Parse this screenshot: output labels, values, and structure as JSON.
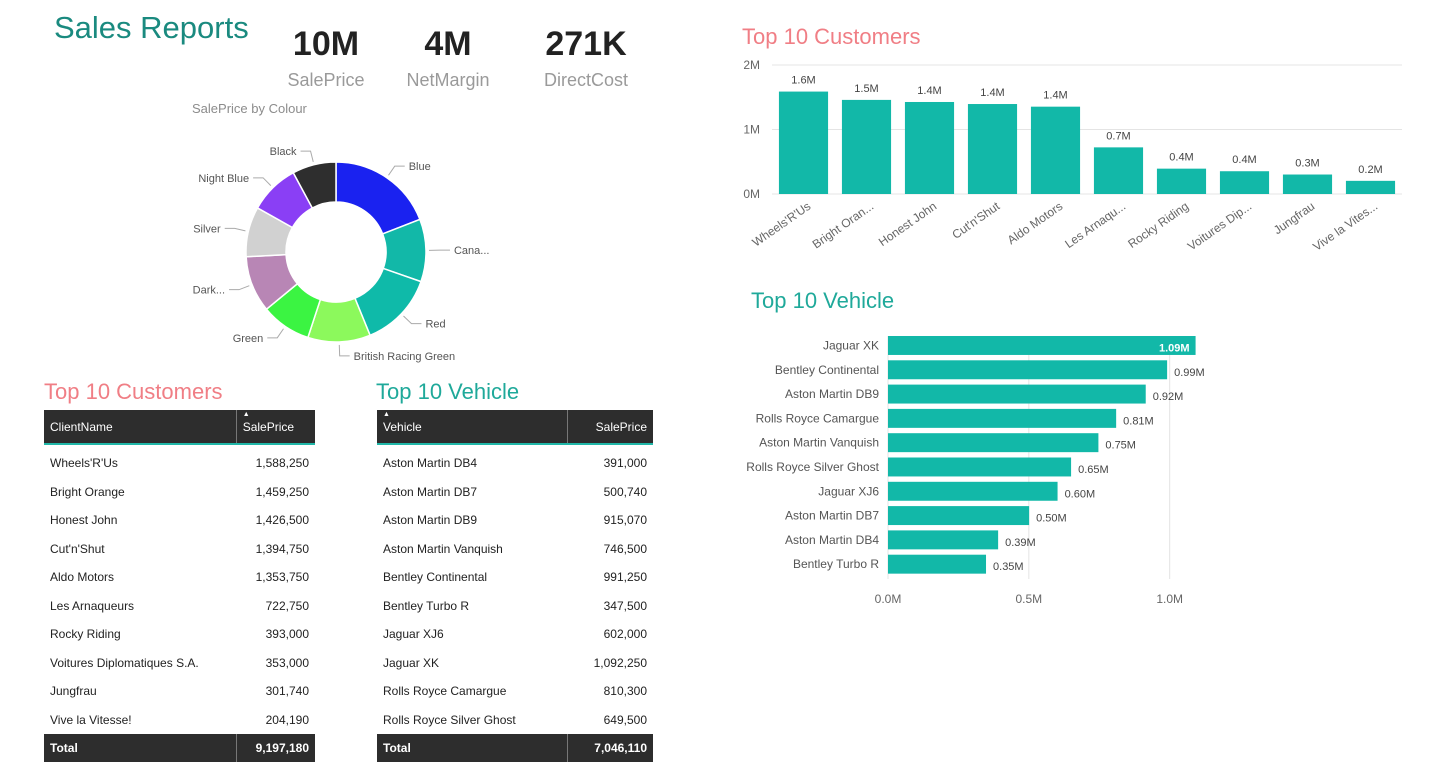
{
  "app": {
    "title": "Sales Reports"
  },
  "kpis": [
    {
      "value": "10M",
      "label": "SalePrice"
    },
    {
      "value": "4M",
      "label": "NetMargin"
    },
    {
      "value": "271K",
      "label": "DirectCost"
    }
  ],
  "colors": {
    "teal_bar": "#12b8a8",
    "pink_title": "#f07e85",
    "teal_title": "#1fa99a",
    "header_bg": "#2d2d2d"
  },
  "chart_data": [
    {
      "type": "pie",
      "title": "SalePrice by Colour",
      "donut": true,
      "slices": [
        {
          "label": "Blue",
          "value": 17,
          "color": "#1a22f0"
        },
        {
          "label": "Cana...",
          "value": 10,
          "color": "#12b8a8"
        },
        {
          "label": "Red",
          "value": 12,
          "color": "#0fbaa9"
        },
        {
          "label": "British Racing Green",
          "value": 10,
          "color": "#8cf95c"
        },
        {
          "label": "Green",
          "value": 8,
          "color": "#3bf442"
        },
        {
          "label": "Dark...",
          "value": 9,
          "color": "#b886b5"
        },
        {
          "label": "Silver",
          "value": 8,
          "color": "#d1d1d1"
        },
        {
          "label": "Night Blue",
          "value": 8,
          "color": "#8a3ff5"
        },
        {
          "label": "Black",
          "value": 7,
          "color": "#2e2e2e"
        }
      ]
    },
    {
      "type": "bar",
      "title": "Top 10 Customers",
      "categories": [
        "Wheels'R'Us",
        "Bright Oran...",
        "Honest John",
        "Cut'n'Shut",
        "Aldo Motors",
        "Les Arnaqu...",
        "Rocky Riding",
        "Voitures Dip...",
        "Jungfrau",
        "Vive la Vites..."
      ],
      "values": [
        1.588,
        1.459,
        1.4265,
        1.395,
        1.354,
        0.723,
        0.393,
        0.353,
        0.302,
        0.204
      ],
      "data_labels": [
        "1.6M",
        "1.5M",
        "1.4M",
        "1.4M",
        "1.4M",
        "0.7M",
        "0.4M",
        "0.4M",
        "0.3M",
        "0.2M"
      ],
      "yticks": [
        "0M",
        "1M",
        "2M"
      ],
      "ylim": [
        0,
        2
      ],
      "grid": true
    },
    {
      "type": "bar",
      "orientation": "horizontal",
      "title": "Top 10 Vehicle",
      "categories": [
        "Jaguar XK",
        "Bentley Continental",
        "Aston Martin DB9",
        "Rolls Royce Camargue",
        "Aston Martin Vanquish",
        "Rolls Royce Silver Ghost",
        "Jaguar XJ6",
        "Aston Martin DB7",
        "Aston Martin DB4",
        "Bentley Turbo R"
      ],
      "values": [
        1.092,
        0.991,
        0.915,
        0.81,
        0.747,
        0.65,
        0.602,
        0.501,
        0.391,
        0.348
      ],
      "data_labels": [
        "1.09M",
        "0.99M",
        "0.92M",
        "0.81M",
        "0.75M",
        "0.65M",
        "0.60M",
        "0.50M",
        "0.39M",
        "0.35M"
      ],
      "xticks": [
        "0.0M",
        "0.5M",
        "1.0M"
      ],
      "xlim": [
        0,
        1.2
      ],
      "grid": true
    }
  ],
  "customers_table": {
    "title": "Top 10 Customers",
    "columns": [
      "ClientName",
      "SalePrice"
    ],
    "rows": [
      [
        "Wheels'R'Us",
        "1,588,250"
      ],
      [
        "Bright Orange",
        "1,459,250"
      ],
      [
        "Honest John",
        "1,426,500"
      ],
      [
        "Cut'n'Shut",
        "1,394,750"
      ],
      [
        "Aldo Motors",
        "1,353,750"
      ],
      [
        "Les Arnaqueurs",
        "722,750"
      ],
      [
        "Rocky Riding",
        "393,000"
      ],
      [
        "Voitures Diplomatiques S.A.",
        "353,000"
      ],
      [
        "Jungfrau",
        "301,740"
      ],
      [
        "Vive la Vitesse!",
        "204,190"
      ]
    ],
    "total_label": "Total",
    "total_value": "9,197,180"
  },
  "vehicle_table": {
    "title": "Top 10 Vehicle",
    "columns": [
      "Vehicle",
      "SalePrice"
    ],
    "rows": [
      [
        "Aston Martin DB4",
        "391,000"
      ],
      [
        "Aston Martin DB7",
        "500,740"
      ],
      [
        "Aston Martin DB9",
        "915,070"
      ],
      [
        "Aston Martin Vanquish",
        "746,500"
      ],
      [
        "Bentley Continental",
        "991,250"
      ],
      [
        "Bentley Turbo R",
        "347,500"
      ],
      [
        "Jaguar XJ6",
        "602,000"
      ],
      [
        "Jaguar XK",
        "1,092,250"
      ],
      [
        "Rolls Royce Camargue",
        "810,300"
      ],
      [
        "Rolls Royce Silver Ghost",
        "649,500"
      ]
    ],
    "total_label": "Total",
    "total_value": "7,046,110"
  }
}
